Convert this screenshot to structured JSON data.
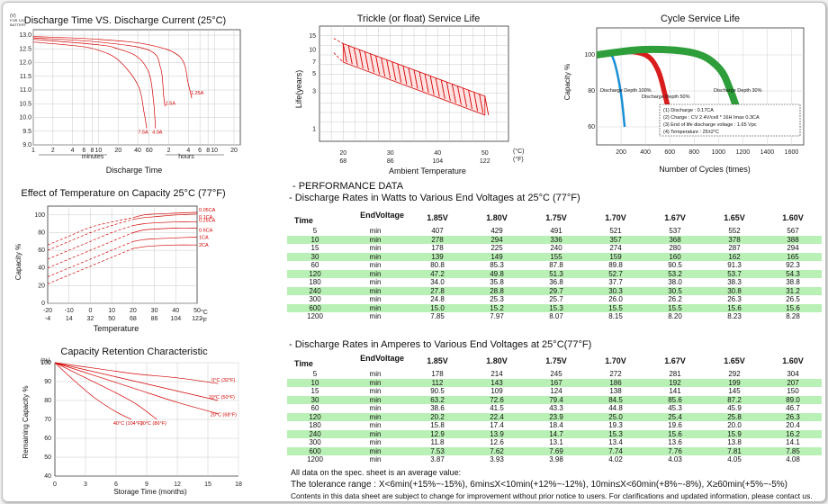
{
  "discharge_time": {
    "title": "Discharge Time VS. Discharge Current (25°C)",
    "yunit": [
      "(V)",
      "FOR 12V",
      "BATTERY"
    ],
    "yticks": [
      "13.0",
      "12.5",
      "12.0",
      "11.5",
      "11.0",
      "10.5",
      "10.0",
      "9.5",
      "9.0"
    ],
    "xticks": [
      "1",
      "2",
      "4",
      "6",
      "8",
      "10",
      "20",
      "40",
      "60",
      "2",
      "4",
      "6",
      "8",
      "10",
      "20"
    ],
    "minutes_label": "minutes",
    "hours_label": "hours",
    "xlabel": "Discharge Time",
    "curve_labels": [
      "7.5A",
      "4.0A",
      "2.5A",
      "1.25A"
    ]
  },
  "float_life": {
    "title": "Trickle (or float) Service Life",
    "ylabel": "Life(years)",
    "yticks": [
      "15",
      "10",
      "7",
      "5",
      "3",
      "1"
    ],
    "xticks_c": [
      "20",
      "30",
      "40",
      "50"
    ],
    "xticks_f": [
      "68",
      "86",
      "104",
      "122"
    ],
    "unit_c": "(°C)",
    "unit_f": "(°F)",
    "xlabel": "Ambient Temperature"
  },
  "cycle_life": {
    "title": "Cycle Service Life",
    "ylabel": "Capacity %",
    "yticks": [
      "100",
      "80",
      "60"
    ],
    "xticks": [
      "200",
      "400",
      "600",
      "800",
      "1000",
      "1200",
      "1400",
      "1600"
    ],
    "xlabel": "Number of Cycles (times)",
    "curve_labels": [
      "Discharge Depth 100%",
      "Discharge Depth 50%",
      "Discharge Depth 30%"
    ],
    "colors": [
      "#1a8fd6",
      "#d91c1c",
      "#2e9e3a"
    ],
    "legend": [
      "(1) Discharge : 0.17CA",
      "(2) Charge : CV 2.4V/cell * 16H  Imax 0.3CA",
      "(3) End of life discharge voltage : 1.65 Vpc",
      "(4) Temperature : 25±2°C"
    ]
  },
  "temp_capacity": {
    "title": "Effect of Temperature on Capacity 25°C (77°F)",
    "ylabel": "Capacity %",
    "yticks": [
      "100",
      "80",
      "60",
      "40",
      "20",
      "0"
    ],
    "xticks_c": [
      "-20",
      "-10",
      "0",
      "10",
      "20",
      "30",
      "40",
      "50"
    ],
    "xticks_f": [
      "-4",
      "14",
      "32",
      "50",
      "68",
      "86",
      "104",
      "122"
    ],
    "unit_c": "°C",
    "unit_f": "°F",
    "xlabel": "Temperature",
    "curve_labels": [
      "0.05CA",
      "0.1CA",
      "0.25CA",
      "0.6CA",
      "1CA",
      "2CA"
    ]
  },
  "retention": {
    "title": "Capacity Retention Characteristic",
    "ylabel": "Remaining Capacity %",
    "yunit": "(%)",
    "yticks": [
      "100",
      "90",
      "80",
      "70",
      "60",
      "50",
      "40"
    ],
    "xticks": [
      "0",
      "3",
      "6",
      "9",
      "12",
      "15",
      "18"
    ],
    "xlabel": "Storage Time (months)",
    "curve_labels": [
      "0°C (32°F)",
      "10°C (50°F)",
      "20°C (68°F)",
      "30°C (86°F)",
      "40°C (104°F)"
    ]
  },
  "performance": {
    "heading": "- PERFORMANCE DATA",
    "watts_title": "- Discharge Rates in Watts to Various End Voltages at 25°C (77°F)",
    "amps_title": "- Discharge Rates in Amperes to Various End Voltages at 25°C(77°F)",
    "end_voltage_label": "EndVoltage",
    "time_label": "Time",
    "voltages": [
      "1.85V",
      "1.80V",
      "1.75V",
      "1.70V",
      "1.67V",
      "1.65V",
      "1.60V"
    ],
    "watts_rows": [
      {
        "t": "5",
        "u": "min",
        "v": [
          "407",
          "429",
          "491",
          "521",
          "537",
          "552",
          "567"
        ]
      },
      {
        "t": "10",
        "u": "min",
        "v": [
          "278",
          "294",
          "336",
          "357",
          "368",
          "378",
          "388"
        ]
      },
      {
        "t": "15",
        "u": "min",
        "v": [
          "178",
          "225",
          "240",
          "274",
          "280",
          "287",
          "294"
        ]
      },
      {
        "t": "30",
        "u": "min",
        "v": [
          "139",
          "149",
          "155",
          "159",
          "160",
          "162",
          "165"
        ]
      },
      {
        "t": "60",
        "u": "min",
        "v": [
          "80.8",
          "85.3",
          "87.8",
          "89.8",
          "90.5",
          "91.3",
          "92.3"
        ]
      },
      {
        "t": "120",
        "u": "min",
        "v": [
          "47.2",
          "49.8",
          "51.3",
          "52.7",
          "53.2",
          "53.7",
          "54.3"
        ]
      },
      {
        "t": "180",
        "u": "min",
        "v": [
          "34.0",
          "35.8",
          "36.8",
          "37.7",
          "38.0",
          "38.3",
          "38.8"
        ]
      },
      {
        "t": "240",
        "u": "min",
        "v": [
          "27.8",
          "28.8",
          "29.7",
          "30.3",
          "30.5",
          "30.8",
          "31.2"
        ]
      },
      {
        "t": "300",
        "u": "min",
        "v": [
          "24.8",
          "25.3",
          "25.7",
          "26.0",
          "26.2",
          "26.3",
          "26.5"
        ]
      },
      {
        "t": "600",
        "u": "min",
        "v": [
          "15.0",
          "15.2",
          "15.3",
          "15.5",
          "15.5",
          "15.6",
          "15.6"
        ]
      },
      {
        "t": "1200",
        "u": "min",
        "v": [
          "7.85",
          "7.97",
          "8.07",
          "8.15",
          "8.20",
          "8.23",
          "8.28"
        ]
      }
    ],
    "amps_rows": [
      {
        "t": "5",
        "u": "min",
        "v": [
          "178",
          "214",
          "245",
          "272",
          "281",
          "292",
          "304"
        ]
      },
      {
        "t": "10",
        "u": "min",
        "v": [
          "112",
          "143",
          "167",
          "186",
          "192",
          "199",
          "207"
        ]
      },
      {
        "t": "15",
        "u": "min",
        "v": [
          "90.5",
          "109",
          "124",
          "138",
          "141",
          "145",
          "150"
        ]
      },
      {
        "t": "30",
        "u": "min",
        "v": [
          "63.2",
          "72.6",
          "79.4",
          "84.5",
          "85.6",
          "87.2",
          "89.0"
        ]
      },
      {
        "t": "60",
        "u": "min",
        "v": [
          "38.6",
          "41.5",
          "43.3",
          "44.8",
          "45.3",
          "45.9",
          "46.7"
        ]
      },
      {
        "t": "120",
        "u": "min",
        "v": [
          "20.2",
          "22.4",
          "23.9",
          "25.0",
          "25.4",
          "25.8",
          "26.3"
        ]
      },
      {
        "t": "180",
        "u": "min",
        "v": [
          "15.8",
          "17.4",
          "18.4",
          "19.3",
          "19.6",
          "20.0",
          "20.4"
        ]
      },
      {
        "t": "240",
        "u": "min",
        "v": [
          "12.9",
          "13.9",
          "14.7",
          "15.3",
          "15.6",
          "15.9",
          "16.2"
        ]
      },
      {
        "t": "300",
        "u": "min",
        "v": [
          "11.8",
          "12.6",
          "13.1",
          "13.4",
          "13.6",
          "13.8",
          "14.1"
        ]
      },
      {
        "t": "600",
        "u": "min",
        "v": [
          "7.53",
          "7.62",
          "7.69",
          "7.74",
          "7.76",
          "7.81",
          "7.85"
        ]
      },
      {
        "t": "1200",
        "u": "min",
        "v": [
          "3.87",
          "3.93",
          "3.98",
          "4.02",
          "4.03",
          "4.05",
          "4.08"
        ]
      }
    ],
    "notes": [
      "All data on the spec. sheet is an average value:",
      "The tolerance range : X<6min(+15%~-15%), 6min≤X<10min(+12%~-12%), 10min≤X<60min(+8%~-8%), X≥60min(+5%~-5%)",
      "Contents in this data sheet are subject to change for improvement without prior notice to users. For clarifications and updated information, please contact us."
    ]
  },
  "chart_data": [
    {
      "type": "line",
      "title": "Discharge Time VS. Discharge Current (25°C)",
      "xlabel": "Discharge Time",
      "ylabel": "(V) FOR 12V BATTERY",
      "ylim": [
        9.0,
        13.2
      ],
      "xscale": "log",
      "x_unit": "minutes",
      "series": [
        {
          "name": "7.5A",
          "x": [
            1,
            5,
            10,
            20,
            40,
            50,
            55
          ],
          "y": [
            12.75,
            12.6,
            12.45,
            12.1,
            11.2,
            10.2,
            9.6
          ]
        },
        {
          "name": "4.0A",
          "x": [
            1,
            10,
            20,
            40,
            60,
            70,
            75
          ],
          "y": [
            12.85,
            12.65,
            12.5,
            12.2,
            11.6,
            10.6,
            9.6
          ]
        },
        {
          "name": "2.5A",
          "x": [
            1,
            10,
            60,
            90,
            100,
            105
          ],
          "y": [
            12.9,
            12.75,
            12.45,
            11.8,
            10.8,
            10.4
          ]
        },
        {
          "name": "1.25A",
          "x": [
            1,
            10,
            60,
            180,
            240,
            270
          ],
          "y": [
            12.95,
            12.85,
            12.65,
            12.2,
            11.2,
            10.7
          ]
        }
      ]
    },
    {
      "type": "area",
      "title": "Trickle (or float) Service Life",
      "xlabel": "Ambient Temperature",
      "ylabel": "Life(years)",
      "x_unit": "°C",
      "xlim": [
        20,
        50
      ],
      "yscale": "log",
      "band_upper": {
        "x": [
          20,
          50
        ],
        "y": [
          12,
          2.6
        ]
      },
      "band_lower": {
        "x": [
          20,
          50
        ],
        "y": [
          7,
          1.5
        ]
      },
      "dashed_extension": {
        "x": [
          18,
          20
        ],
        "y": [
          14,
          12
        ]
      }
    },
    {
      "type": "line",
      "title": "Cycle Service Life",
      "xlabel": "Number of Cycles (times)",
      "ylabel": "Capacity %",
      "ylim": [
        50,
        105
      ],
      "xlim": [
        0,
        1600
      ],
      "series": [
        {
          "name": "Discharge Depth 100%",
          "x": [
            0,
            100,
            150,
            200,
            230
          ],
          "y": [
            100,
            101,
            95,
            78,
            60
          ]
        },
        {
          "name": "Discharge Depth 50%",
          "x": [
            0,
            200,
            400,
            500,
            560,
            620
          ],
          "y": [
            100,
            102,
            100,
            92,
            78,
            60
          ]
        },
        {
          "name": "Discharge Depth 30%",
          "x": [
            0,
            400,
            800,
            1000,
            1100,
            1200
          ],
          "y": [
            100,
            103,
            101,
            93,
            80,
            60
          ]
        }
      ]
    },
    {
      "type": "line",
      "title": "Effect of Temperature on Capacity 25°C (77°F)",
      "xlabel": "Temperature",
      "ylabel": "Capacity %",
      "x_unit": "°C",
      "xlim": [
        -20,
        50
      ],
      "ylim": [
        0,
        110
      ],
      "series": [
        {
          "name": "0.05CA",
          "x": [
            -20,
            -10,
            0,
            10,
            20,
            25,
            30,
            40,
            50
          ],
          "y": [
            66,
            76,
            86,
            92,
            97,
            100,
            101,
            102,
            103
          ]
        },
        {
          "name": "0.1CA",
          "x": [
            -20,
            -10,
            0,
            10,
            20,
            25,
            30,
            40,
            50
          ],
          "y": [
            60,
            70,
            80,
            88,
            95,
            97,
            98,
            100,
            101
          ]
        },
        {
          "name": "0.25CA",
          "x": [
            -20,
            -10,
            0,
            10,
            20,
            25,
            30,
            40,
            50
          ],
          "y": [
            50,
            60,
            70,
            80,
            88,
            90,
            91,
            92,
            92
          ]
        },
        {
          "name": "0.6CA",
          "x": [
            -20,
            -10,
            0,
            10,
            20,
            25,
            30,
            40,
            50
          ],
          "y": [
            40,
            50,
            60,
            70,
            80,
            83,
            84,
            85,
            85
          ]
        },
        {
          "name": "1CA",
          "x": [
            -20,
            -10,
            0,
            10,
            20,
            25,
            30,
            40,
            50
          ],
          "y": [
            30,
            40,
            50,
            60,
            70,
            72,
            73,
            74,
            75
          ]
        },
        {
          "name": "2CA",
          "x": [
            -20,
            -10,
            0,
            10,
            20,
            25,
            30,
            40,
            50
          ],
          "y": [
            22,
            32,
            42,
            52,
            62,
            64,
            65,
            66,
            66
          ]
        }
      ]
    },
    {
      "type": "line",
      "title": "Capacity Retention Characteristic",
      "xlabel": "Storage Time (months)",
      "ylabel": "Remaining Capacity %",
      "xlim": [
        0,
        18
      ],
      "ylim": [
        40,
        100
      ],
      "series": [
        {
          "name": "0°C (32°F)",
          "x": [
            0,
            4,
            8,
            12,
            16
          ],
          "y": [
            100,
            97,
            94,
            92,
            89
          ]
        },
        {
          "name": "10°C (50°F)",
          "x": [
            0,
            4,
            8,
            12,
            16
          ],
          "y": [
            100,
            95,
            90,
            85,
            80
          ]
        },
        {
          "name": "20°C (68°F)",
          "x": [
            0,
            4,
            8,
            12,
            16
          ],
          "y": [
            100,
            93,
            86,
            79,
            73
          ]
        },
        {
          "name": "30°C (86°F)",
          "x": [
            0,
            3,
            6,
            8,
            10
          ],
          "y": [
            100,
            92,
            84,
            78,
            70
          ]
        },
        {
          "name": "40°C (104°F)",
          "x": [
            0,
            2,
            4,
            6,
            7.5
          ],
          "y": [
            100,
            90,
            81,
            74,
            70
          ]
        }
      ]
    },
    {
      "type": "table",
      "title": "- Discharge Rates in Watts to Various End Voltages at 25°C (77°F)",
      "ref": "performance.watts_rows"
    },
    {
      "type": "table",
      "title": "- Discharge Rates in Amperes to Various End Voltages at 25°C(77°F)",
      "ref": "performance.amps_rows"
    }
  ]
}
